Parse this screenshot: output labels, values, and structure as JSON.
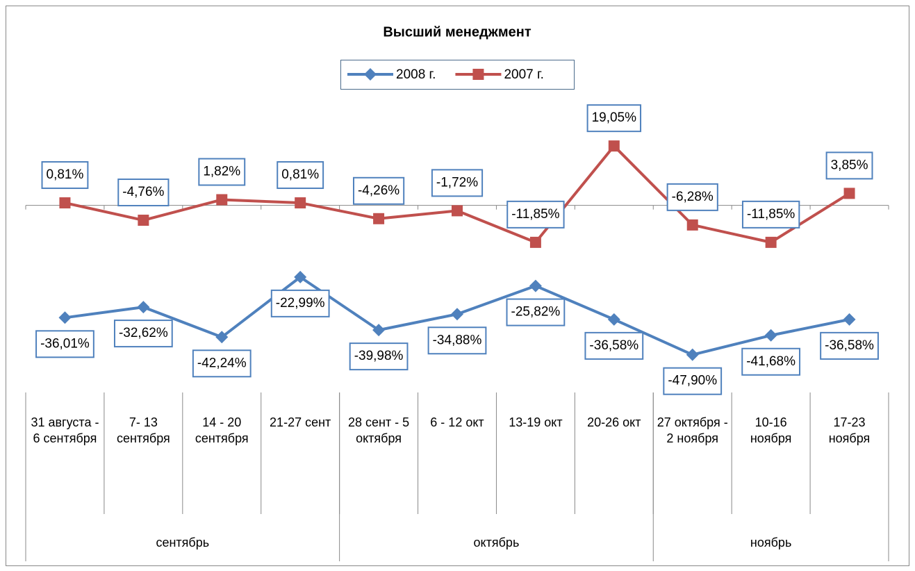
{
  "chart_data": {
    "type": "line",
    "title": "Высший менеджмент",
    "category_groups": [
      {
        "name": "сентябрь",
        "categories": [
          "31 августа - 6 сентября",
          "7- 13 сентября",
          "14 - 20 сентября",
          "21-27 сент"
        ]
      },
      {
        "name": "октябрь",
        "categories": [
          "28 сент - 5 октября",
          "6 - 12 окт",
          "13-19 окт",
          "20-26 окт"
        ]
      },
      {
        "name": "ноябрь",
        "categories": [
          "27 октября - 2 ноября",
          "10-16 ноября",
          "17-23 ноября"
        ]
      }
    ],
    "series": [
      {
        "name": "2008 г.",
        "color": "#4f81bd",
        "marker": "diamond",
        "values": [
          -36.01,
          -32.62,
          -42.24,
          -22.99,
          -39.98,
          -34.88,
          -25.82,
          -36.58,
          -47.9,
          -41.68,
          -36.58
        ],
        "value_labels": [
          "-36,01%",
          "-32,62%",
          "-42,24%",
          "-22,99%",
          "-39,98%",
          "-34,88%",
          "-25,82%",
          "-36,58%",
          "-47,90%",
          "-41,68%",
          "-36,58%"
        ]
      },
      {
        "name": "2007 г.",
        "color": "#c0504d",
        "marker": "square",
        "values": [
          0.81,
          -4.76,
          1.82,
          0.81,
          -4.26,
          -1.72,
          -11.85,
          19.05,
          -6.28,
          -11.85,
          3.85
        ],
        "value_labels": [
          "0,81%",
          "-4,76%",
          "1,82%",
          "0,81%",
          "-4,26%",
          "-1,72%",
          "-11,85%",
          "19,05%",
          "-6,28%",
          "-11,85%",
          "3,85%"
        ]
      }
    ],
    "ylim": [
      -60,
      30
    ],
    "legend": "top"
  }
}
